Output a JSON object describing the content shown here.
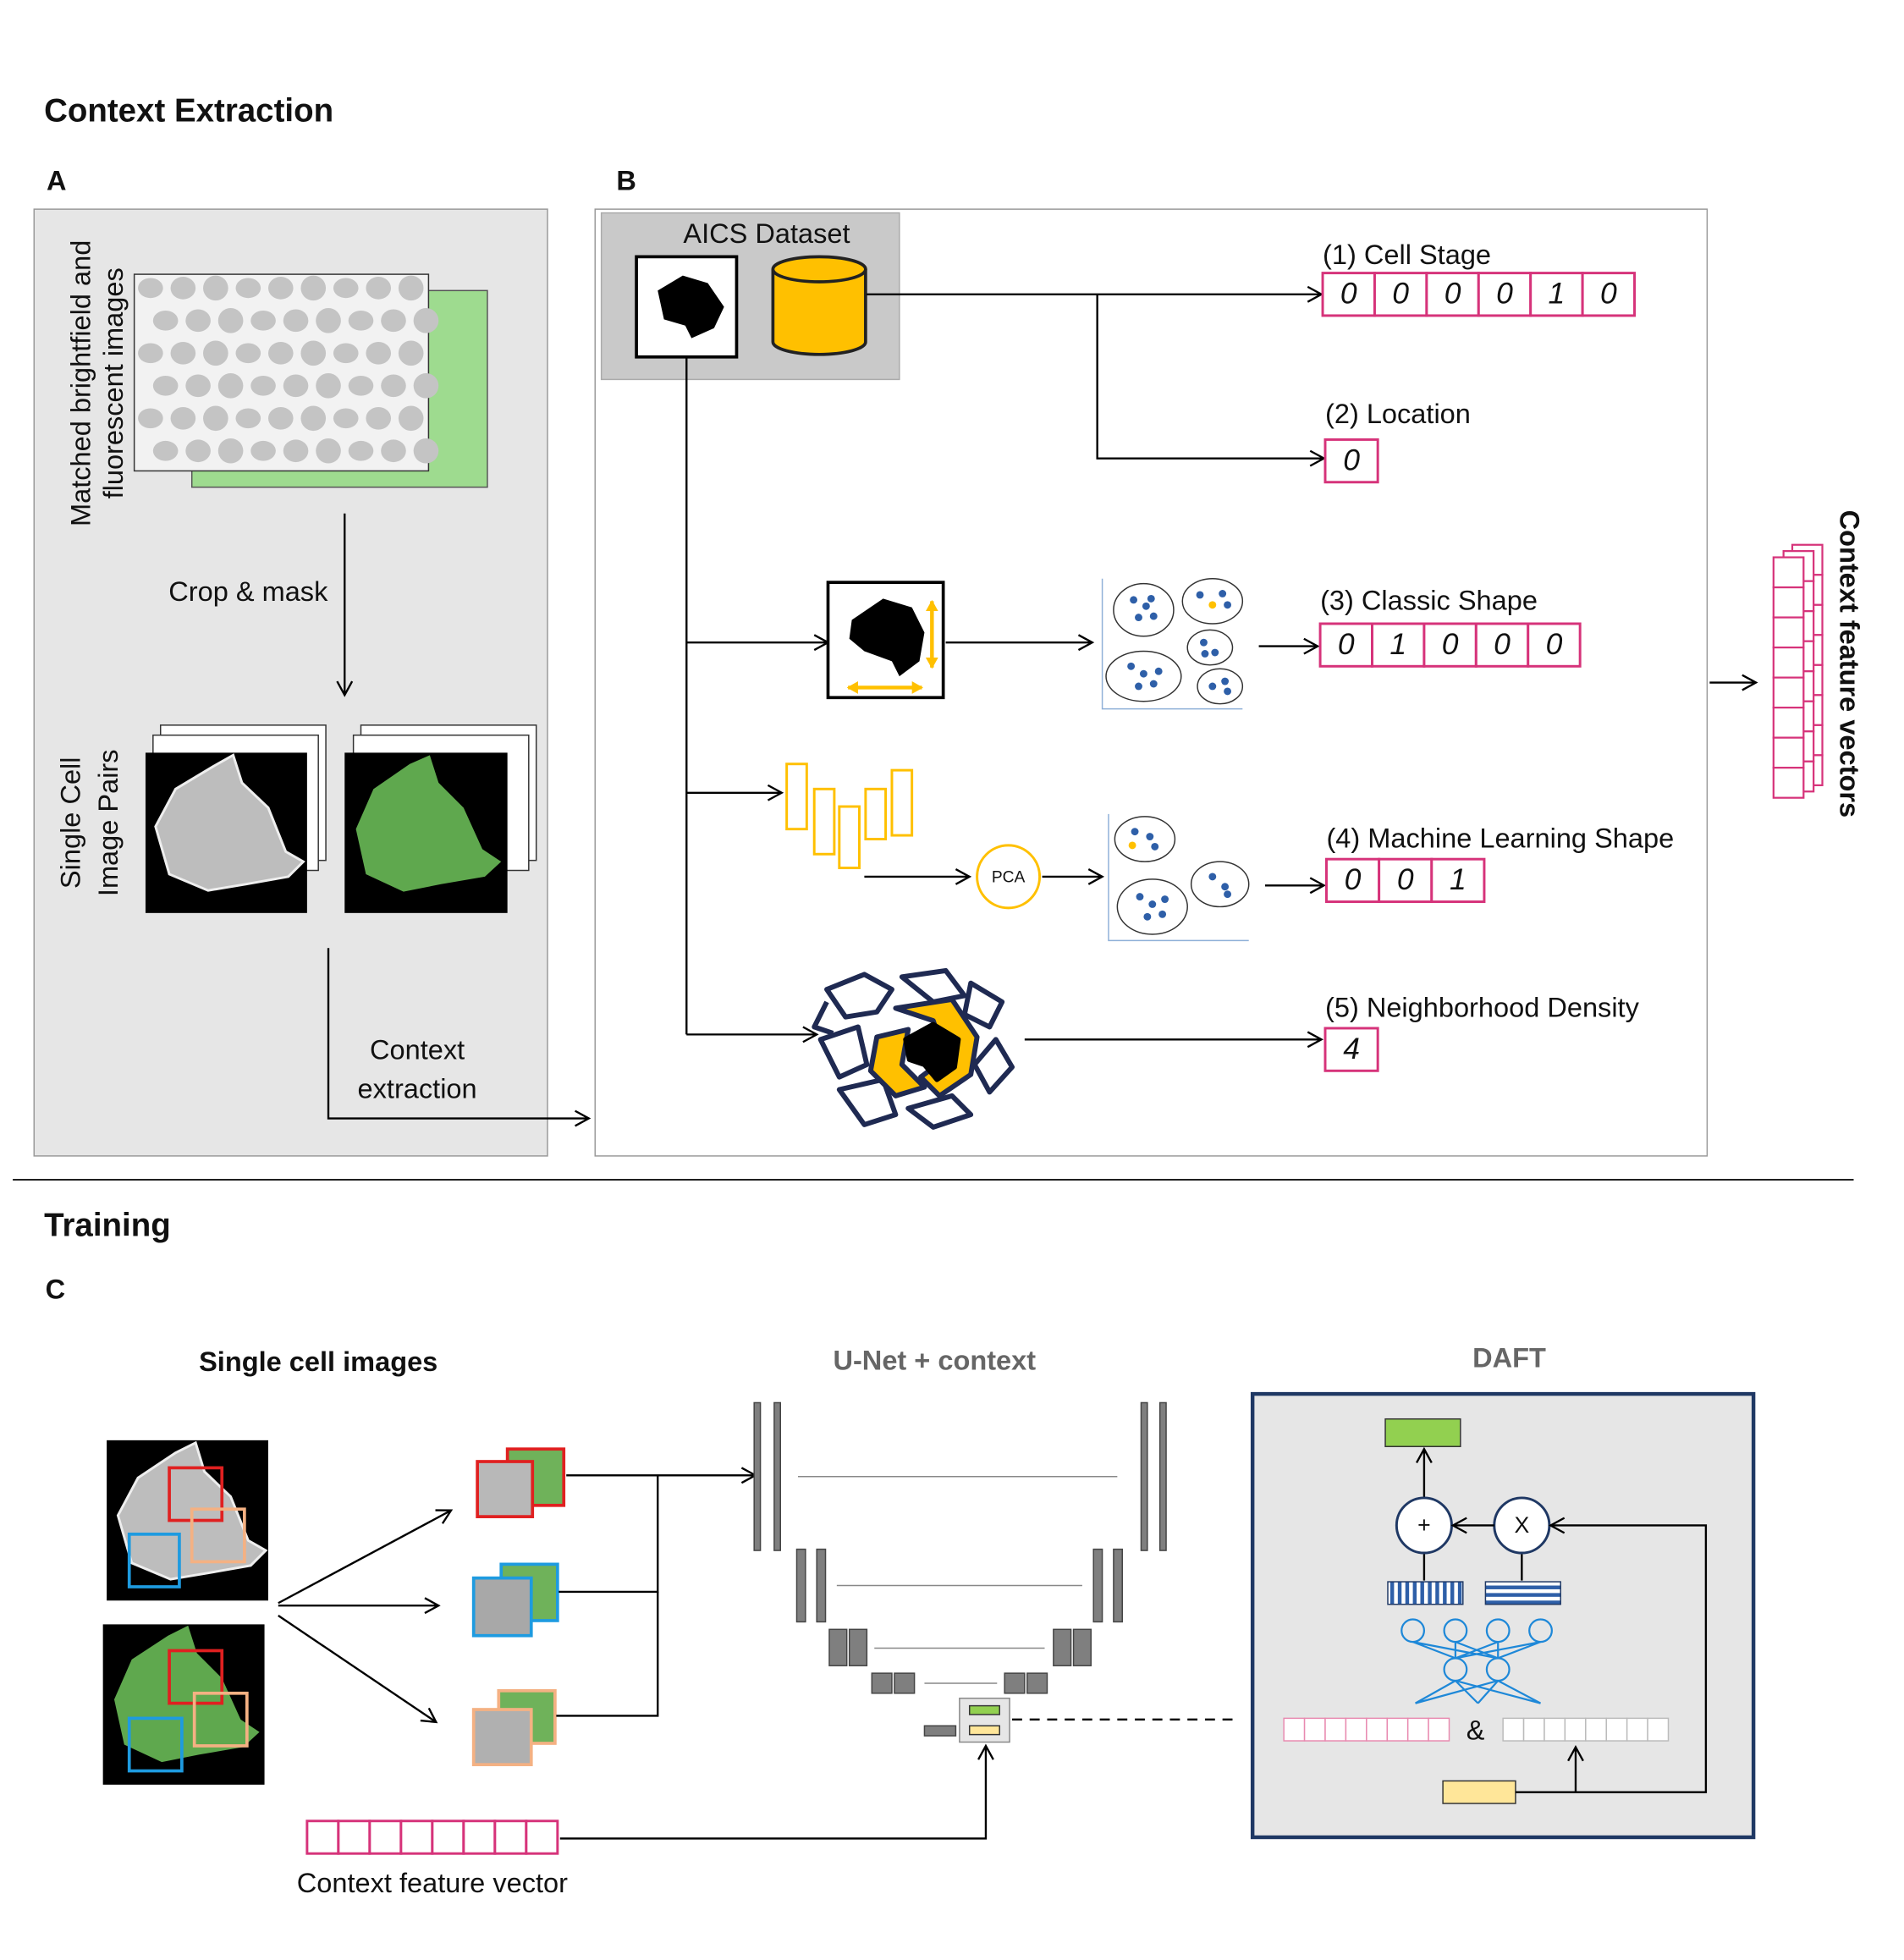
{
  "title_extraction": "Context Extraction",
  "title_training": "Training",
  "panel_a": {
    "label": "A",
    "input_lines": [
      "Matched brightfield and",
      "fluorescent images"
    ],
    "step": "Crop & mask",
    "pairs_lines": [
      "Single Cell",
      "Image Pairs"
    ],
    "extraction_lines": [
      "Context",
      "extraction"
    ]
  },
  "panel_b": {
    "label": "B",
    "dataset": "AICS Dataset",
    "pca": "PCA",
    "features": [
      {
        "label": "(1) Cell Stage",
        "vector": [
          0,
          0,
          0,
          0,
          1,
          0
        ]
      },
      {
        "label": "(2) Location",
        "vector": [
          0
        ]
      },
      {
        "label": "(3) Classic Shape",
        "vector": [
          0,
          1,
          0,
          0,
          0
        ]
      },
      {
        "label": "(4) Machine Learning Shape",
        "vector": [
          0,
          0,
          1
        ]
      },
      {
        "label": "(5) Neighborhood Density",
        "vector": [
          4
        ]
      }
    ],
    "output": "Context feature vectors"
  },
  "panel_c": {
    "label": "C",
    "images_title": "Single cell images",
    "unet_title": "U-Net + context",
    "daft_title": "DAFT",
    "plus": "+",
    "times": "X",
    "concat": "&",
    "context_vector": "Context feature vector"
  }
}
